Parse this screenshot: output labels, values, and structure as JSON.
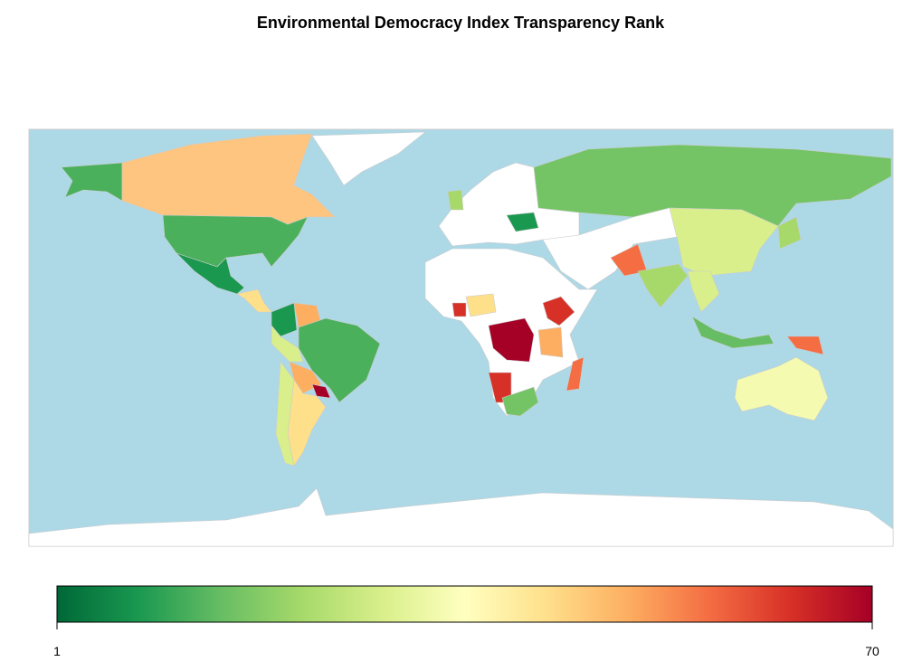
{
  "title": "Environmental Democracy Index  Transparency Rank",
  "colorbar": {
    "range": [
      1,
      70
    ],
    "ticks": [
      1,
      70
    ],
    "colors": [
      "#006837",
      "#1a9850",
      "#66bd63",
      "#a6d96a",
      "#d9ef8b",
      "#ffffbf",
      "#fee08b",
      "#fdae61",
      "#f46d43",
      "#d73027",
      "#a50026"
    ]
  }
}
